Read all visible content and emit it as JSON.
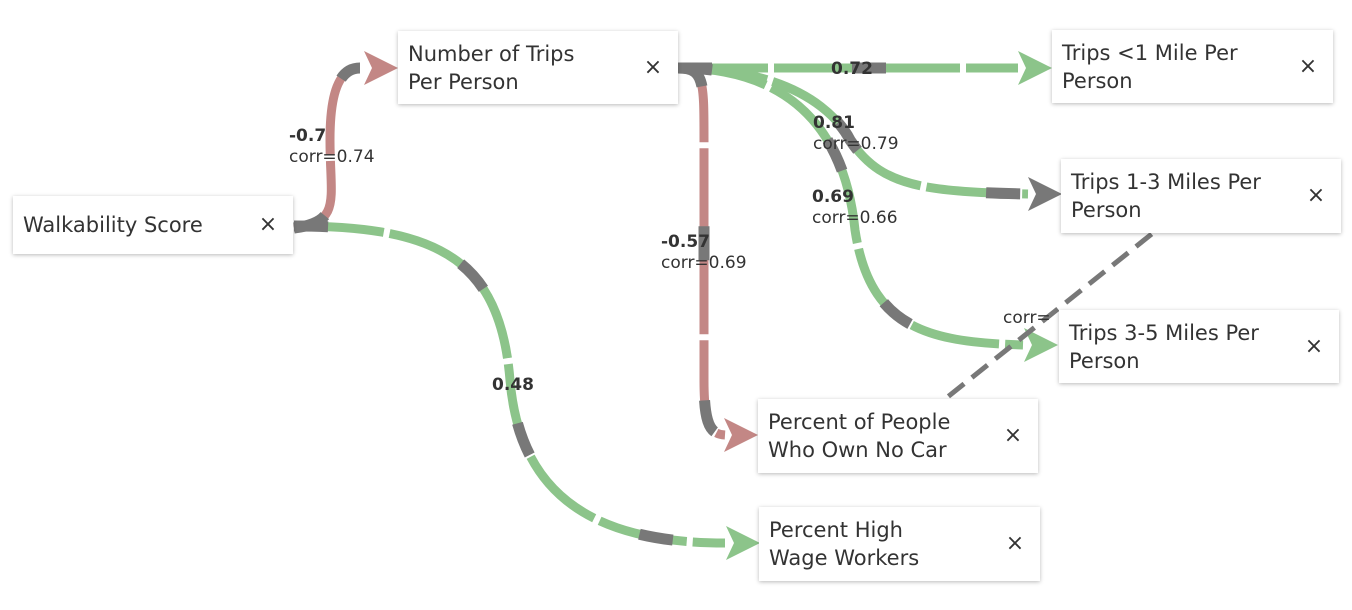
{
  "colors": {
    "positive": "#8cc48a",
    "negative": "#c38785",
    "dash": "#787878"
  },
  "nodes": [
    {
      "id": "walkability",
      "label": "Walkability Score"
    },
    {
      "id": "trips",
      "label": "Number of Trips\nPer Person"
    },
    {
      "id": "trips_lt1",
      "label": "Trips <1 Mile Per\nPerson"
    },
    {
      "id": "trips_1_3",
      "label": "Trips 1-3 Miles Per\nPerson"
    },
    {
      "id": "trips_3_5",
      "label": "Trips 3-5 Miles Per\nPerson"
    },
    {
      "id": "no_car",
      "label": "Percent of People\nWho Own No Car"
    },
    {
      "id": "high_wage",
      "label": "Percent High\nWage Workers"
    }
  ],
  "close_icon": "×",
  "edges": [
    {
      "id": "e_walk_trips",
      "from": "walkability",
      "to": "trips",
      "sign": "negative",
      "weight": "-0.7",
      "corr": "corr=0.74"
    },
    {
      "id": "e_walk_wage",
      "from": "walkability",
      "to": "high_wage",
      "sign": "positive",
      "weight": "0.48",
      "corr": ""
    },
    {
      "id": "e_trips_lt1",
      "from": "trips",
      "to": "trips_lt1",
      "sign": "positive",
      "weight": "0.72",
      "corr": ""
    },
    {
      "id": "e_trips_13",
      "from": "trips",
      "to": "trips_1_3",
      "sign": "positive",
      "weight": "0.81",
      "corr": "corr=0.79"
    },
    {
      "id": "e_trips_35",
      "from": "trips",
      "to": "trips_3_5",
      "sign": "positive",
      "weight": "0.69",
      "corr": "corr=0.66"
    },
    {
      "id": "e_trips_nocar",
      "from": "trips",
      "to": "no_car",
      "sign": "negative",
      "weight": "-0.57",
      "corr": "corr=0.69"
    },
    {
      "id": "e_nocar_13",
      "from": "no_car",
      "to": "trips_1_3",
      "sign": "correlation",
      "weight": "",
      "corr": "corr="
    }
  ]
}
